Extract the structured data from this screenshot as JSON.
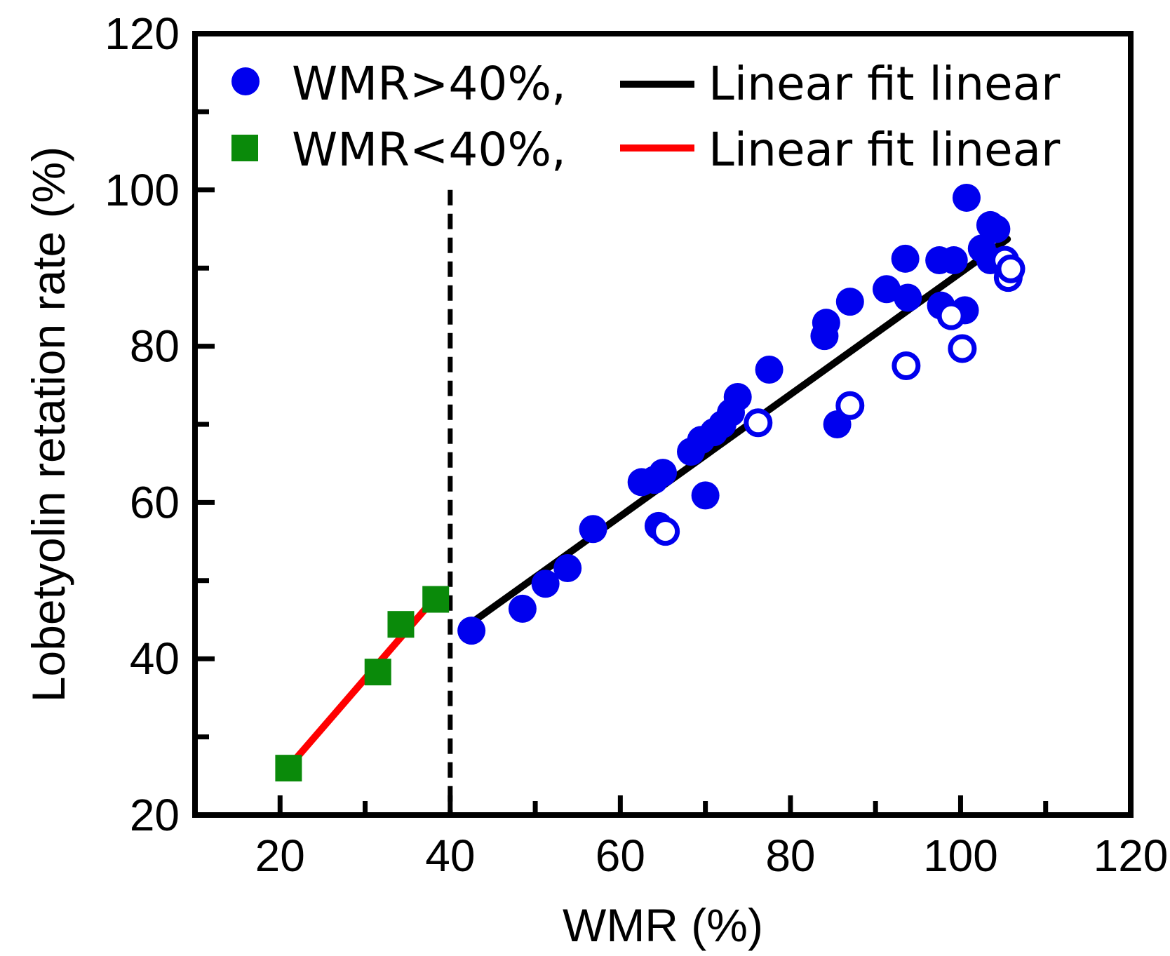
{
  "chart_data": {
    "type": "scatter",
    "xlabel": "WMR (%)",
    "ylabel": "Lobetyolin retation rate (%)",
    "xlim": [
      10,
      120
    ],
    "ylim": [
      20,
      120
    ],
    "xticks": [
      20,
      40,
      60,
      80,
      100,
      120
    ],
    "yticks": [
      20,
      40,
      60,
      80,
      100,
      120
    ],
    "x_minor_step": 10,
    "y_minor_step": 10,
    "threshold_x": 40,
    "legend": {
      "placement": "top-left",
      "rows": [
        {
          "marker": "circle",
          "label": "WMR>40%,",
          "fit_label": "Linear fit linear",
          "marker_color": "#0000ee",
          "fit_color": "#000000"
        },
        {
          "marker": "square",
          "label": "WMR<40%,",
          "fit_label": "Linear fit linear",
          "marker_color": "#0a8a0a",
          "fit_color": "#ff0000"
        }
      ]
    },
    "series": [
      {
        "name": "WMR>40%",
        "marker": "circle-filled",
        "color": "#0000ee",
        "points": [
          [
            42.5,
            43.6
          ],
          [
            48.5,
            46.4
          ],
          [
            51.2,
            49.6
          ],
          [
            53.8,
            51.6
          ],
          [
            56.8,
            56.6
          ],
          [
            62.5,
            62.6
          ],
          [
            64.0,
            62.9
          ],
          [
            65.0,
            63.8
          ],
          [
            64.5,
            57.0
          ],
          [
            68.3,
            66.5
          ],
          [
            69.5,
            68.0
          ],
          [
            70.0,
            60.9
          ],
          [
            71.0,
            69.0
          ],
          [
            72.0,
            70.0
          ],
          [
            73.0,
            71.5
          ],
          [
            73.8,
            73.5
          ],
          [
            77.5,
            77.0
          ],
          [
            84.0,
            81.3
          ],
          [
            84.2,
            83.0
          ],
          [
            85.5,
            70.0
          ],
          [
            87.0,
            85.7
          ],
          [
            91.3,
            87.3
          ],
          [
            93.5,
            91.2
          ],
          [
            93.8,
            86.2
          ],
          [
            97.5,
            91.0
          ],
          [
            97.7,
            85.2
          ],
          [
            99.2,
            91.0
          ],
          [
            100.5,
            84.6
          ],
          [
            100.7,
            99.0
          ],
          [
            102.5,
            92.5
          ],
          [
            103.5,
            91.0
          ],
          [
            103.5,
            95.5
          ],
          [
            104.2,
            95.0
          ]
        ]
      },
      {
        "name": "WMR>40% (open)",
        "marker": "circle-open",
        "color": "#0000ee",
        "points": [
          [
            65.3,
            56.3
          ],
          [
            76.2,
            70.2
          ],
          [
            87.0,
            72.4
          ],
          [
            93.6,
            77.5
          ],
          [
            98.9,
            83.9
          ],
          [
            100.2,
            79.7
          ],
          [
            105.2,
            91.0
          ],
          [
            105.6,
            88.8
          ],
          [
            105.9,
            89.9
          ]
        ]
      },
      {
        "name": "WMR<40%",
        "marker": "square",
        "color": "#0a8a0a",
        "points": [
          [
            21.0,
            26.0
          ],
          [
            31.5,
            38.3
          ],
          [
            34.2,
            44.4
          ],
          [
            38.3,
            47.6
          ]
        ]
      }
    ],
    "fits": [
      {
        "name": "Linear fit linear",
        "color": "#000000",
        "x": [
          42.5,
          105.5
        ],
        "y": [
          44.6,
          93.7
        ]
      },
      {
        "name": "Linear fit linear",
        "color": "#ff0000",
        "x": [
          20.9,
          38.3
        ],
        "y": [
          26.0,
          47.9
        ]
      }
    ]
  }
}
